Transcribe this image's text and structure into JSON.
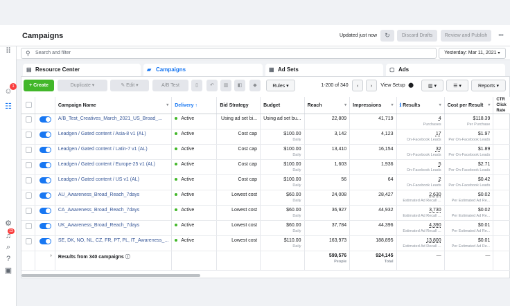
{
  "header": {
    "title": "Campaigns",
    "updated": "Updated just now",
    "discard_label": "Discard Drafts",
    "review_label": "Review and Publish",
    "more_label": "•••"
  },
  "search": {
    "placeholder": "Search and filter",
    "date": "Yesterday: Mar 11, 2021"
  },
  "tabs": [
    {
      "label": "Resource Center",
      "icon": "book-icon"
    },
    {
      "label": "Campaigns",
      "icon": "folder-icon"
    },
    {
      "label": "Ad Sets",
      "icon": "grid-icon"
    },
    {
      "label": "Ads",
      "icon": "ad-icon"
    }
  ],
  "toolbar": {
    "create": "Create",
    "duplicate": "Duplicate",
    "edit": "Edit",
    "ab_test": "A/B Test",
    "rules": "Rules",
    "pagination": "1-200 of 340",
    "view_setup": "View Setup",
    "reports": "Reports"
  },
  "rail": {
    "notif_badge_1": "1",
    "notif_badge_2": "13"
  },
  "table": {
    "headers": {
      "name": "Campaign Name",
      "delivery": "Delivery ↑",
      "bid": "Bid Strategy",
      "budget": "Budget",
      "reach": "Reach",
      "impressions": "Impressions",
      "results": "Results",
      "cost": "Cost per Result",
      "ctr": "CTR Click Rate"
    },
    "rows": [
      {
        "name": "A/B_Test_Creatives_March_2021_US_Broad_...",
        "delivery": "Active",
        "bid": "Using ad set bi...",
        "budget": "Using ad set bu...",
        "budget_sub": "",
        "reach": "22,809",
        "impressions": "41,719",
        "results": "4",
        "results_sub": "Purchases",
        "cost": "$118.39",
        "cost_sub": "Per Purchase"
      },
      {
        "name": "Leadgen / Gated content / Asia-8 v1 (AL)",
        "delivery": "Active",
        "bid": "Cost cap",
        "budget": "$100.00",
        "budget_sub": "Daily",
        "reach": "3,142",
        "impressions": "4,123",
        "results": "17",
        "results_sub": "On-Facebook Leads",
        "cost": "$1.97",
        "cost_sub": "Per On-Facebook Leads"
      },
      {
        "name": "Leadgen / Gated content / Latin-7 v1 (AL)",
        "delivery": "Active",
        "bid": "Cost cap",
        "budget": "$100.00",
        "budget_sub": "Daily",
        "reach": "13,410",
        "impressions": "16,154",
        "results": "32",
        "results_sub": "On-Facebook Leads",
        "cost": "$1.89",
        "cost_sub": "Per On-Facebook Leads"
      },
      {
        "name": "Leadgen / Gated content / Europe-25 v1 (AL)",
        "delivery": "Active",
        "bid": "Cost cap",
        "budget": "$100.00",
        "budget_sub": "Daily",
        "reach": "1,603",
        "impressions": "1,936",
        "results": "5",
        "results_sub": "On-Facebook Leads",
        "cost": "$2.71",
        "cost_sub": "Per On-Facebook Leads"
      },
      {
        "name": "Leadgen / Gated content / US v1 (AL)",
        "delivery": "Active",
        "bid": "Cost cap",
        "budget": "$100.00",
        "budget_sub": "Daily",
        "reach": "56",
        "impressions": "64",
        "results": "2",
        "results_sub": "On-Facebook Leads",
        "cost": "$0.42",
        "cost_sub": "Per On-Facebook Leads"
      },
      {
        "name": "AU_Awareness_Broad_Reach_7days",
        "delivery": "Active",
        "bid": "Lowest cost",
        "budget": "$60.00",
        "budget_sub": "Daily",
        "reach": "24,008",
        "impressions": "28,427",
        "results": "2,630",
        "results_sub": "Estimated Ad Recall ...",
        "cost": "$0.02",
        "cost_sub": "Per Estimated Ad Re..."
      },
      {
        "name": "CA_Awareness_Broad_Reach_7days",
        "delivery": "Active",
        "bid": "Lowest cost",
        "budget": "$60.00",
        "budget_sub": "Daily",
        "reach": "36,927",
        "impressions": "44,932",
        "results": "3,730",
        "results_sub": "Estimated Ad Recall ...",
        "cost": "$0.02",
        "cost_sub": "Per Estimated Ad Re..."
      },
      {
        "name": "UK_Awareness_Broad_Reach_7days",
        "delivery": "Active",
        "bid": "Lowest cost",
        "budget": "$60.00",
        "budget_sub": "Daily",
        "reach": "37,784",
        "impressions": "44,396",
        "results": "4,390",
        "results_sub": "Estimated Ad Recall ...",
        "cost": "$0.01",
        "cost_sub": "Per Estimated Ad Re..."
      },
      {
        "name": "SE, DK, NO, NL, CZ, FR, PT, PL, IT_Awareness_...",
        "delivery": "Active",
        "bid": "Lowest cost",
        "budget": "$110.00",
        "budget_sub": "Daily",
        "reach": "163,973",
        "impressions": "188,895",
        "results": "13,800",
        "results_sub": "Estimated Ad Recall ...",
        "cost": "$0.01",
        "cost_sub": "Per Estimated Ad Re..."
      }
    ],
    "footer": {
      "label": "Results from 340 campaigns",
      "reach": "599,576",
      "reach_sub": "People",
      "impressions": "924,145",
      "impressions_sub": "Total",
      "results": "—",
      "cost": "—"
    }
  },
  "colors": {
    "accent": "#1877f2",
    "create": "#42b72a",
    "link": "#385898",
    "active": "#42b72a"
  }
}
